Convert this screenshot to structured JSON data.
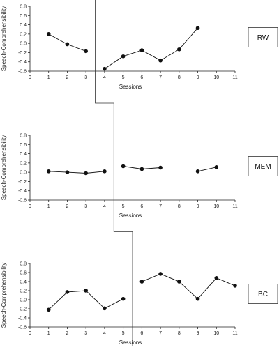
{
  "chart_data": [
    {
      "type": "line",
      "panel_label": "RW",
      "xlabel": "Sessions",
      "ylabel": "Speech-Comprehensibility",
      "xlim": [
        0,
        11
      ],
      "ylim": [
        -0.6,
        0.8
      ],
      "x_ticks": [
        "0",
        "1",
        "2",
        "3",
        "4",
        "5",
        "6",
        "7",
        "8",
        "9",
        "10",
        "11"
      ],
      "y_ticks": [
        "0.8",
        "0.6",
        "0.4",
        "0.2",
        "0.0",
        "-0.2",
        "-0.4",
        "-0.6"
      ],
      "phase_change_after": 3.5,
      "segments": [
        {
          "x": [
            1,
            2,
            3
          ],
          "y": [
            0.2,
            -0.02,
            -0.17
          ]
        },
        {
          "x": [
            4,
            5,
            6,
            7,
            8,
            9
          ],
          "y": [
            -0.55,
            -0.28,
            -0.15,
            -0.37,
            -0.13,
            0.33
          ]
        }
      ]
    },
    {
      "type": "line",
      "panel_label": "MEM",
      "xlabel": "Sessions",
      "ylabel": "Speech-Comprehensibility",
      "xlim": [
        0,
        11
      ],
      "ylim": [
        -0.6,
        0.8
      ],
      "x_ticks": [
        "0",
        "1",
        "2",
        "3",
        "4",
        "5",
        "6",
        "7",
        "8",
        "9",
        "10",
        "11"
      ],
      "y_ticks": [
        "0.8",
        "0.6",
        "0.4",
        "0.2",
        "0.0",
        "-0.2",
        "-0.4",
        "-0.6"
      ],
      "phase_change_after": 4.5,
      "segments": [
        {
          "x": [
            1,
            2,
            3,
            4
          ],
          "y": [
            0.02,
            0.0,
            -0.02,
            0.02
          ]
        },
        {
          "x": [
            5,
            6,
            7
          ],
          "y": [
            0.13,
            0.07,
            0.1
          ]
        },
        {
          "x": [
            9,
            10
          ],
          "y": [
            0.02,
            0.11
          ]
        }
      ]
    },
    {
      "type": "line",
      "panel_label": "BC",
      "xlabel": "Sessions",
      "ylabel": "Speech-Comprehensibility",
      "xlim": [
        0,
        11
      ],
      "ylim": [
        -0.6,
        0.8
      ],
      "x_ticks": [
        "0",
        "1",
        "2",
        "3",
        "4",
        "5",
        "6",
        "7",
        "8",
        "9",
        "10",
        "11"
      ],
      "y_ticks": [
        "0.8",
        "0.6",
        "0.4",
        "0.2",
        "0.0",
        "-0.2",
        "-0.4",
        "-0.6"
      ],
      "phase_change_after": 5.5,
      "segments": [
        {
          "x": [
            1,
            2,
            3,
            4,
            5
          ],
          "y": [
            -0.22,
            0.17,
            0.2,
            -0.19,
            0.02
          ]
        },
        {
          "x": [
            6,
            7,
            8,
            9,
            10,
            11
          ],
          "y": [
            0.4,
            0.57,
            0.4,
            0.02,
            0.48,
            0.31
          ]
        }
      ]
    }
  ]
}
